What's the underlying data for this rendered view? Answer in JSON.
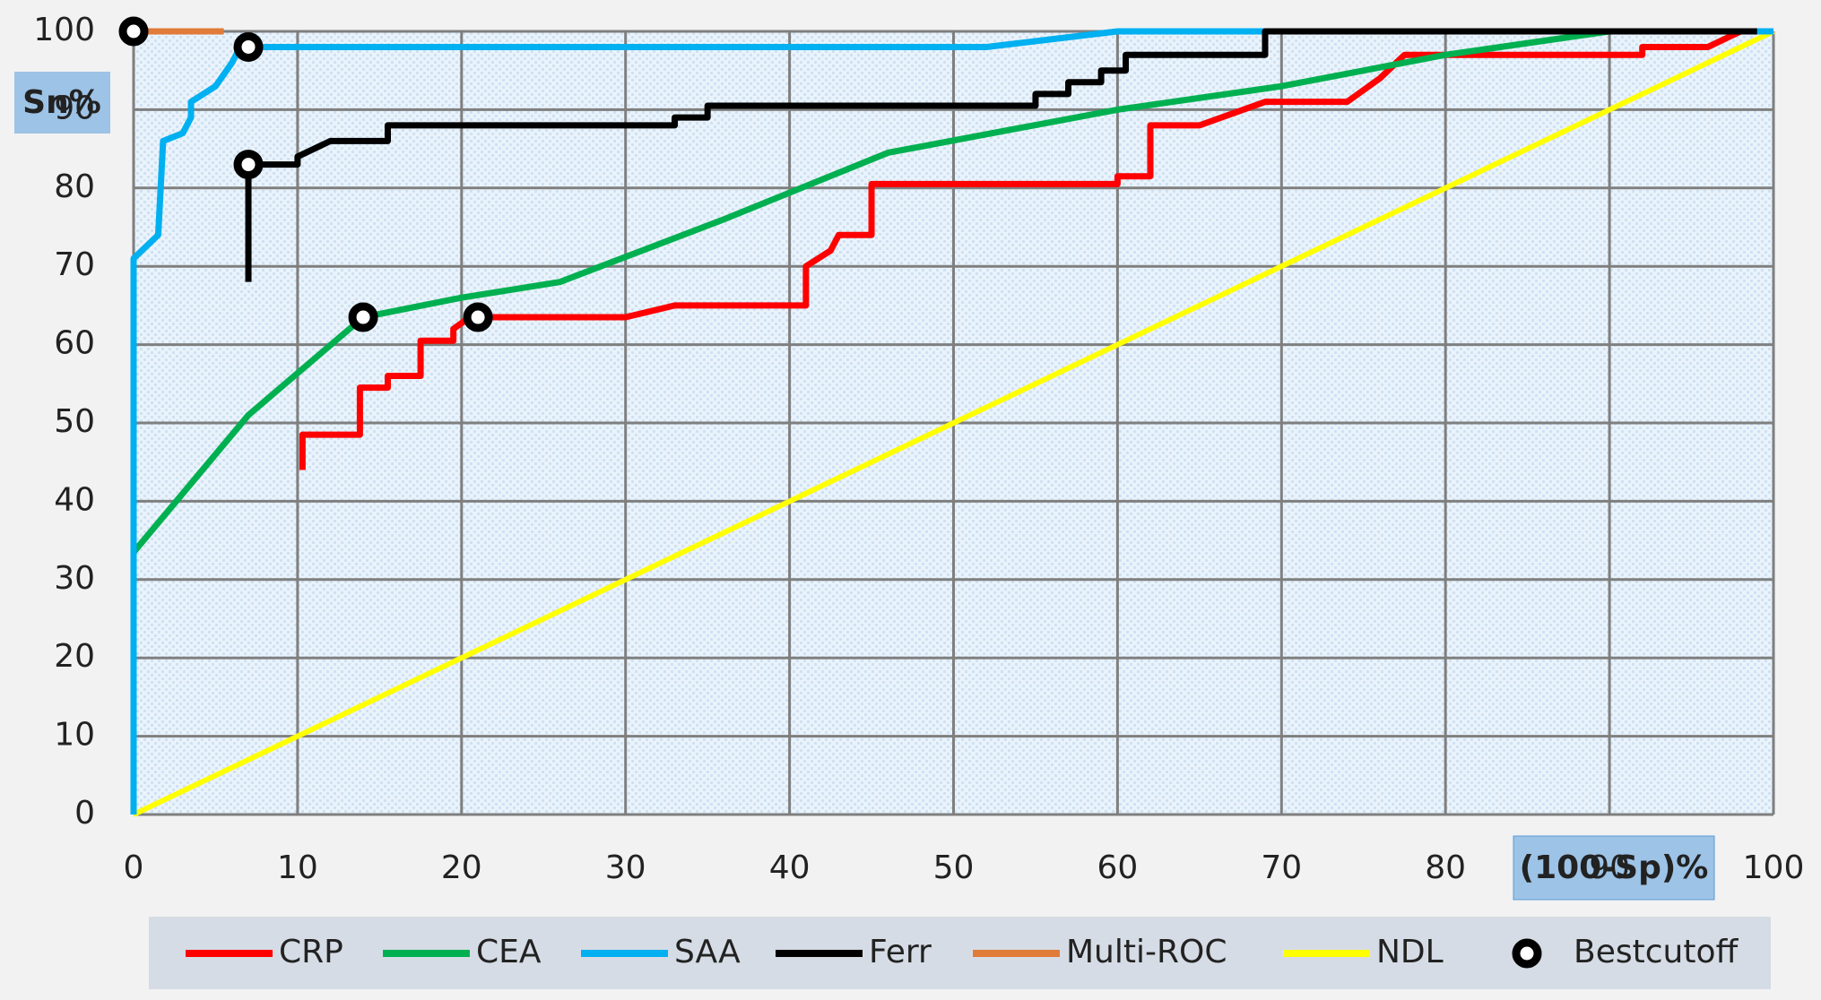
{
  "chart_data": {
    "type": "line",
    "x_label": "(100-Sp)%",
    "y_label": "Sn%",
    "xlim": [
      0,
      100
    ],
    "ylim": [
      0,
      100
    ],
    "xticks": [
      0,
      10,
      20,
      30,
      40,
      50,
      60,
      70,
      80,
      90,
      100
    ],
    "yticks": [
      0,
      10,
      20,
      30,
      40,
      50,
      60,
      70,
      80,
      90,
      100
    ],
    "grid": true,
    "legend": "bottom",
    "series": [
      {
        "name": "CRP",
        "color": "#ff0000",
        "mode": "lines",
        "x": [
          10.3,
          10.3,
          13.8,
          13.8,
          15.5,
          15.5,
          17.5,
          17.5,
          19.5,
          19.5,
          20.5,
          30,
          33,
          41,
          41,
          42.5,
          43,
          45,
          45,
          60,
          60,
          62,
          62,
          65,
          69,
          74,
          76,
          77,
          77.5,
          92,
          92,
          96,
          98,
          100
        ],
        "values": [
          44,
          48.5,
          48.5,
          54.5,
          54.5,
          56,
          56,
          60.5,
          60.5,
          62,
          63.5,
          63.5,
          65,
          65,
          70,
          72,
          74,
          74,
          80.5,
          80.5,
          81.5,
          81.5,
          88,
          88,
          91,
          91,
          94,
          96,
          97,
          97,
          98,
          98,
          100,
          100
        ]
      },
      {
        "name": "CEA",
        "color": "#00b050",
        "mode": "lines",
        "x": [
          0,
          7,
          14,
          20,
          26,
          36,
          46,
          60,
          70,
          80,
          90,
          100
        ],
        "values": [
          33.5,
          51,
          63.5,
          66,
          68,
          76,
          84.5,
          90,
          93,
          97,
          100,
          100
        ]
      },
      {
        "name": "SAA",
        "color": "#00b0f0",
        "mode": "lines",
        "x": [
          0,
          0,
          1.5,
          1.8,
          3,
          3.5,
          3.5,
          5,
          6,
          6.5,
          7,
          52,
          56,
          60,
          69,
          100
        ],
        "values": [
          0,
          71,
          74,
          86,
          87,
          89,
          91,
          93,
          96,
          98,
          98,
          98,
          99,
          100,
          100,
          100
        ]
      },
      {
        "name": "Ferr",
        "color": "#000000",
        "mode": "lines",
        "x": [
          7,
          7,
          10,
          10,
          12,
          15.5,
          15.5,
          33,
          33,
          35,
          35,
          55,
          55,
          57,
          57,
          59,
          59,
          60.5,
          60.5,
          69,
          69,
          99
        ],
        "values": [
          68,
          83,
          83,
          84,
          86,
          86,
          88,
          88,
          89,
          89,
          90.5,
          90.5,
          92,
          92,
          93.5,
          93.5,
          95,
          95,
          97,
          97,
          100,
          100
        ]
      },
      {
        "name": "Multi-ROC",
        "color": "#e07b39",
        "mode": "lines",
        "x": [
          0,
          5.5
        ],
        "values": [
          100,
          100
        ]
      },
      {
        "name": "NDL",
        "color": "#ffff00",
        "mode": "lines",
        "x": [
          0,
          100
        ],
        "values": [
          0,
          100
        ]
      },
      {
        "name": "Bestcutoff",
        "color": "#000000",
        "mode": "markers",
        "x": [
          0,
          7,
          7,
          14,
          21
        ],
        "values": [
          100,
          98,
          83,
          63.5,
          63.5
        ]
      }
    ]
  }
}
